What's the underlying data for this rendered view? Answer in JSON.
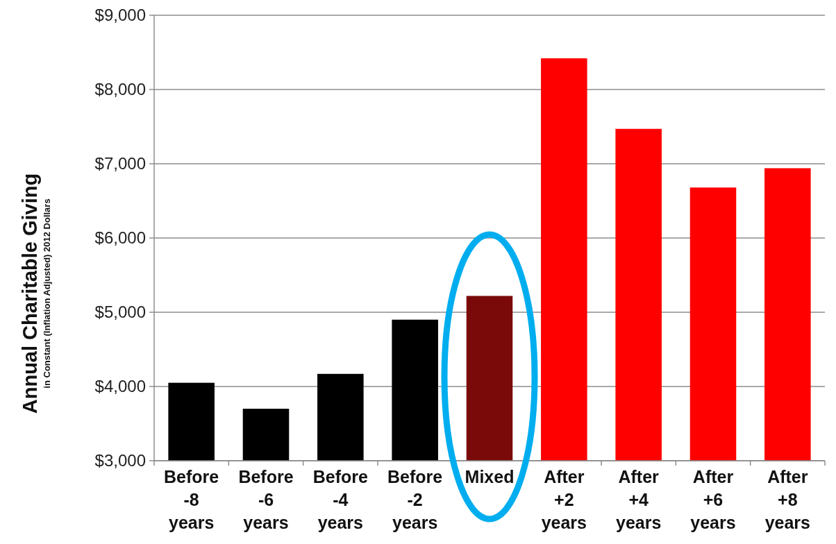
{
  "chart_data": {
    "type": "bar",
    "ylabel": "Annual Charitable Giving\nin Constant (Inflation Adjusted) 2012 Dollars",
    "categories": [
      "Before -8 years",
      "Before -6 years",
      "Before -4 years",
      "Before -2 years",
      "Mixed",
      "After +2 years",
      "After +4 years",
      "After +6 years",
      "After +8 years"
    ],
    "values": [
      4050,
      3700,
      4170,
      4900,
      5220,
      8420,
      7470,
      6680,
      6940
    ],
    "colors": [
      "#000000",
      "#000000",
      "#000000",
      "#000000",
      "#7a0a0a",
      "#ff0000",
      "#ff0000",
      "#ff0000",
      "#ff0000"
    ],
    "ylim": [
      3000,
      9000
    ],
    "yticks": [
      {
        "value": 3000,
        "label": "$3,000"
      },
      {
        "value": 4000,
        "label": "$4,000"
      },
      {
        "value": 5000,
        "label": "$5,000"
      },
      {
        "value": 6000,
        "label": "$6,000"
      },
      {
        "value": 7000,
        "label": "$7,000"
      },
      {
        "value": 8000,
        "label": "$8,000"
      },
      {
        "value": 9000,
        "label": "$9,000"
      }
    ],
    "grid": "y"
  }
}
